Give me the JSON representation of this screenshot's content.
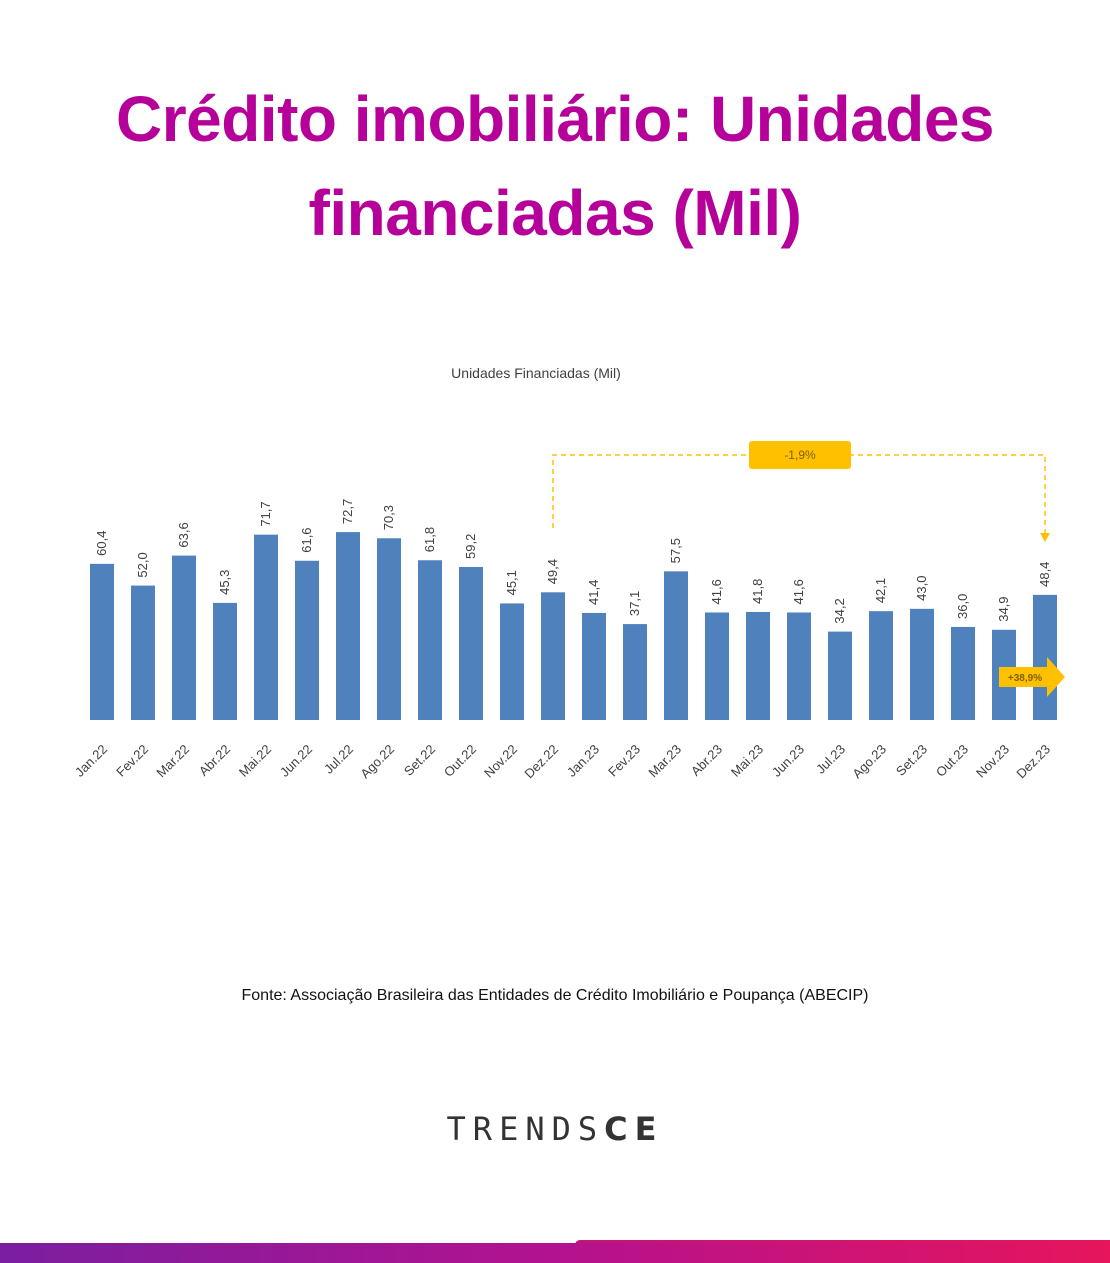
{
  "headline": {
    "line1": "Crédito imobiliário: Unidades",
    "line2": "financiadas (Mil)"
  },
  "source_text": "Fonte: Associação Brasileira das Entidades de Crédito Imobiliário e Poupança (ABECIP)",
  "logo": {
    "part1": "TRENDS",
    "part2": "CE"
  },
  "colors": {
    "title": "#b5009a",
    "bar": "#4f81bd",
    "annotation": "#ffc000",
    "annotation_text": "#7f6000"
  },
  "chart_data": {
    "type": "bar",
    "title": "Unidades Financiadas (Mil)",
    "categories": [
      "Jan.22",
      "Fev.22",
      "Mar.22",
      "Abr.22",
      "Mai.22",
      "Jun.22",
      "Jul.22",
      "Ago.22",
      "Set.22",
      "Out.22",
      "Nov.22",
      "Dez.22",
      "Jan.23",
      "Fev.23",
      "Mar.23",
      "Abr.23",
      "Mai.23",
      "Jun.23",
      "Jul.23",
      "Ago.23",
      "Set.23",
      "Out.23",
      "Nov.23",
      "Dez.23"
    ],
    "values": [
      60.4,
      52.0,
      63.6,
      45.3,
      71.7,
      61.6,
      72.7,
      70.3,
      61.8,
      59.2,
      45.1,
      49.4,
      41.4,
      37.1,
      57.5,
      41.6,
      41.8,
      41.6,
      34.2,
      42.1,
      43.0,
      36.0,
      34.9,
      48.4
    ],
    "value_labels": [
      "60,4",
      "52,0",
      "63,6",
      "45,3",
      "71,7",
      "61,6",
      "72,7",
      "70,3",
      "61,8",
      "59,2",
      "45,1",
      "49,4",
      "41,4",
      "37,1",
      "57,5",
      "41,6",
      "41,8",
      "41,6",
      "34,2",
      "42,1",
      "43,0",
      "36,0",
      "34,9",
      "48,4"
    ],
    "ylim": [
      0,
      100
    ],
    "grid": false,
    "annotations": [
      {
        "text": "-1,9%",
        "from": "Dez.22",
        "to": "Dez.23"
      },
      {
        "text": "+38,9%",
        "from": "Nov.23",
        "to": "Dez.23"
      }
    ]
  }
}
